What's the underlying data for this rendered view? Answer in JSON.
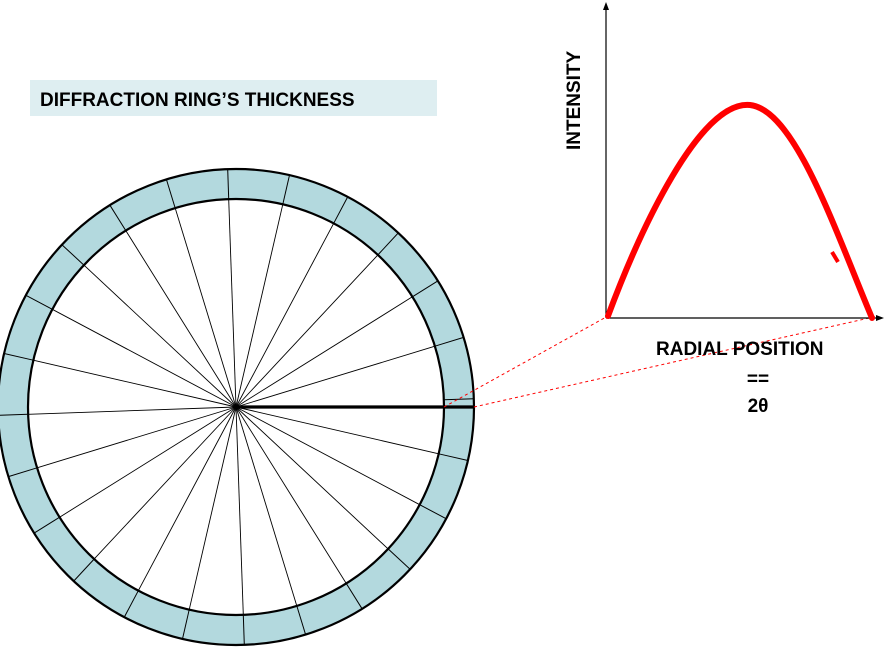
{
  "title": "DIFFRACTION RING’S THICKNESS",
  "graph": {
    "ylabel": "INTENSITY",
    "xlabel": "RADIAL POSITION",
    "equals": "==",
    "two_theta": "2θ"
  },
  "colors": {
    "ring_fill": "#b3d9de",
    "title_bg": "#deeef1",
    "curve": "#ff0000",
    "guide_lines": "#ff0000",
    "outline": "#000000"
  }
}
